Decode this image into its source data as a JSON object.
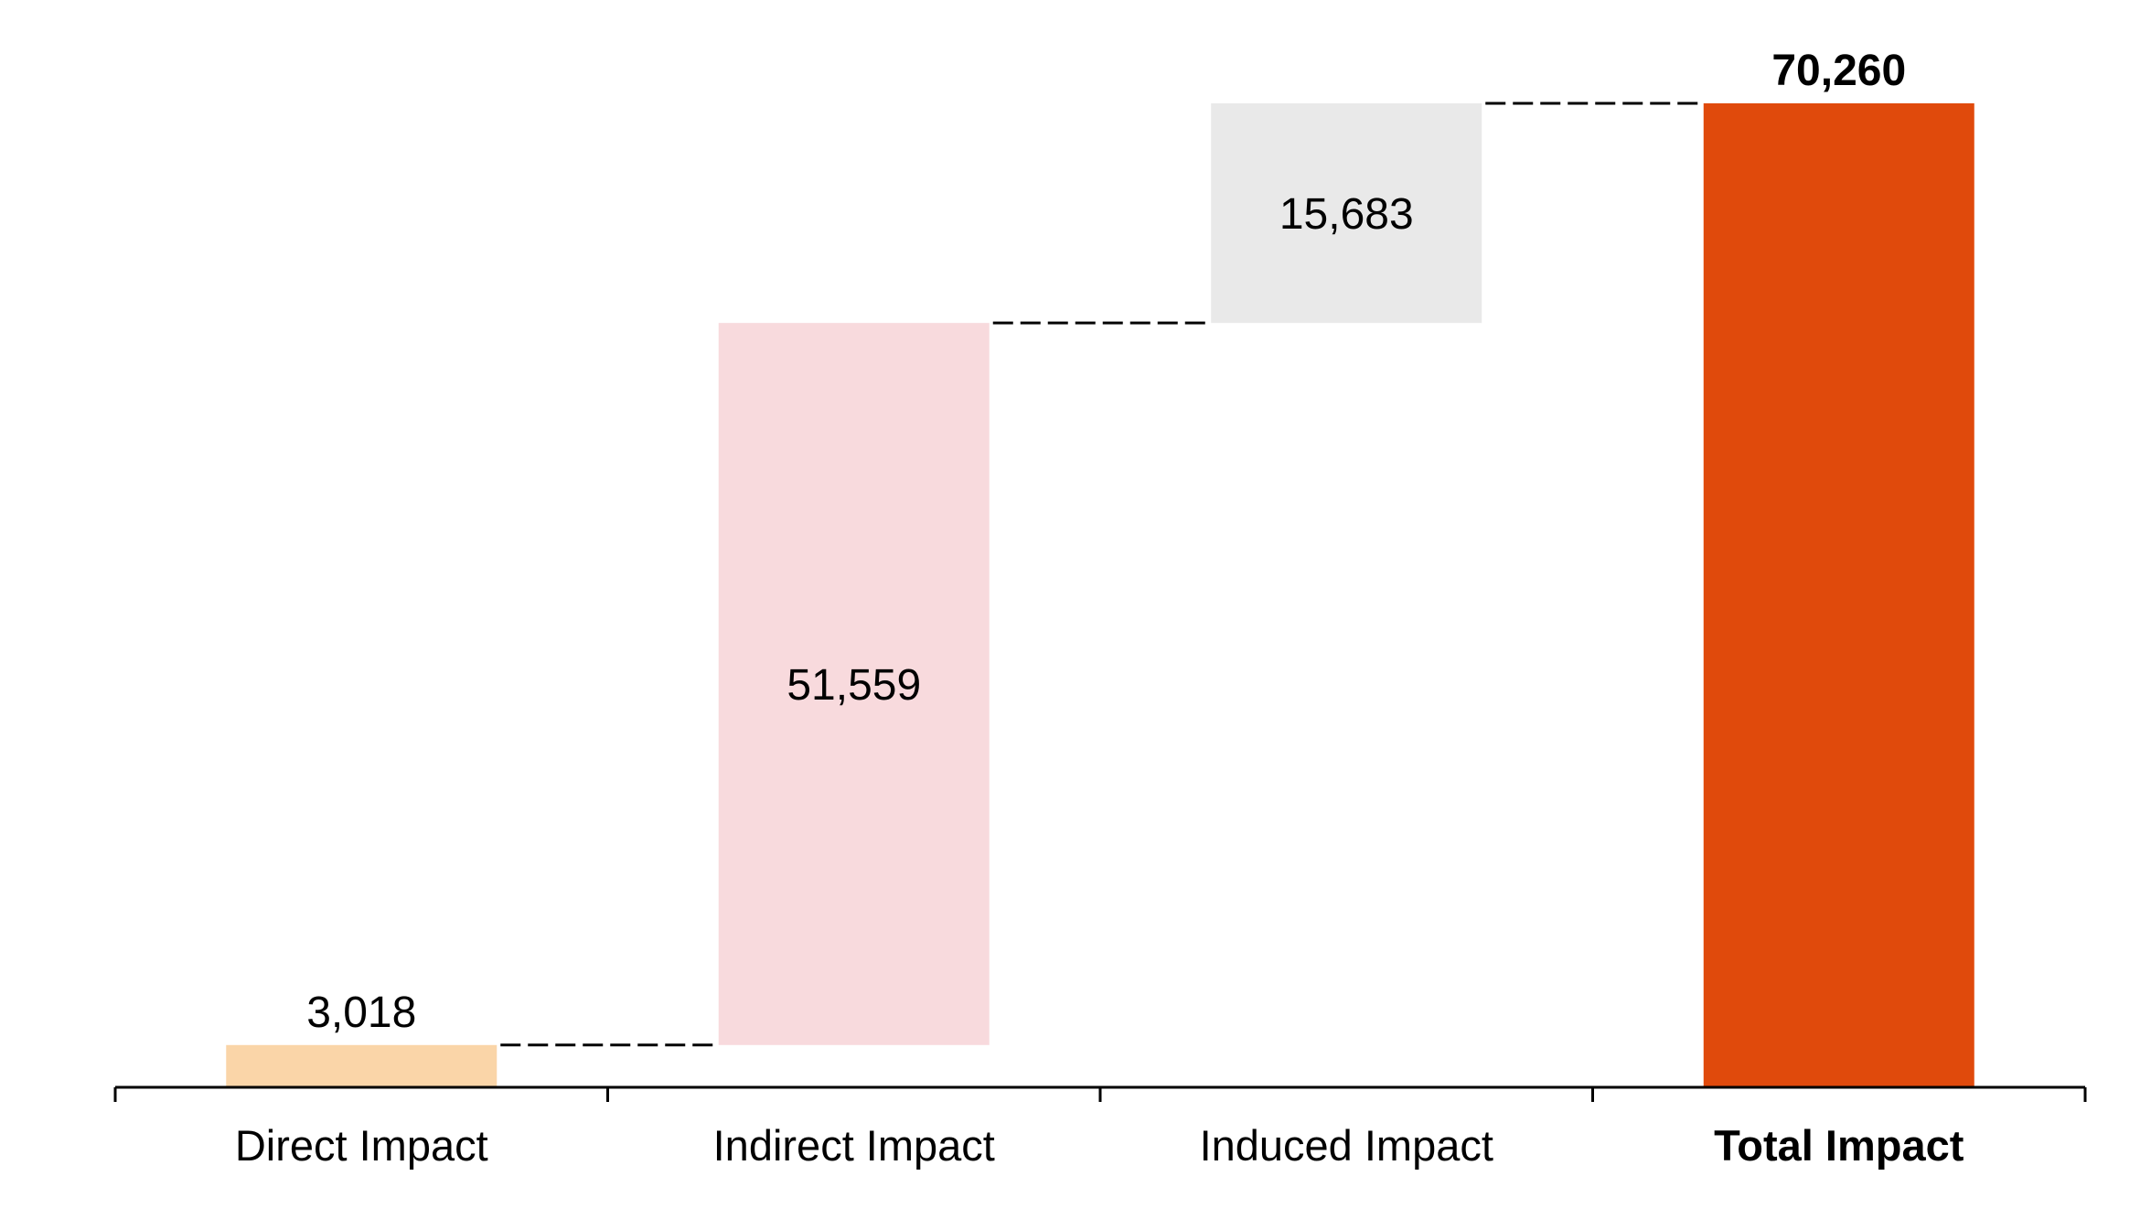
{
  "chart_data": {
    "type": "bar",
    "subtype": "waterfall",
    "title": "",
    "xlabel": "",
    "ylabel": "",
    "ylim": [
      0,
      70260
    ],
    "grid": false,
    "legend": "none",
    "categories": [
      "Direct Impact",
      "Indirect Impact",
      "Induced Impact",
      "Total Impact"
    ],
    "values": [
      3018,
      51559,
      15683,
      70260
    ],
    "value_labels": [
      "3,018",
      "51,559",
      "15,683",
      "70,260"
    ],
    "bar_kinds": [
      "increment",
      "increment",
      "increment",
      "total"
    ],
    "colors": [
      "#fad5a8",
      "#f8dadd",
      "#e9e9e9",
      "#e04a0c"
    ],
    "connector_style": "dashed",
    "bold_categories": [
      "Total Impact"
    ]
  }
}
